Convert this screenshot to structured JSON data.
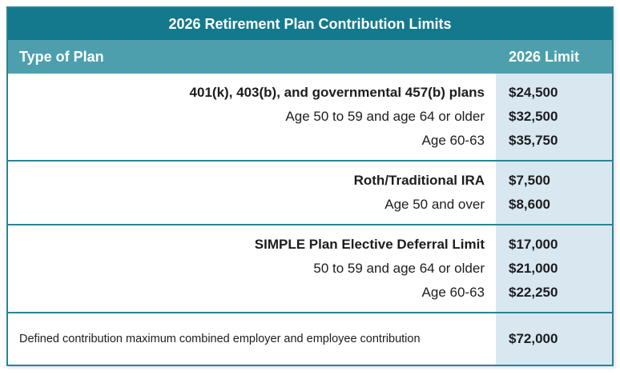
{
  "title": "2026 Retirement Plan Contribution Limits",
  "header": {
    "plan_col": "Type of Plan",
    "limit_col": "2026 Limit"
  },
  "groups": [
    {
      "rows": [
        {
          "label": "401(k), 403(b), and governmental 457(b) plans",
          "value": "$24,500"
        },
        {
          "label": "Age 50 to 59 and age 64 or older",
          "value": "$32,500"
        },
        {
          "label": "Age 60-63",
          "value": "$35,750"
        }
      ]
    },
    {
      "rows": [
        {
          "label": "Roth/Traditional IRA",
          "value": "$7,500"
        },
        {
          "label": "Age 50 and over",
          "value": "$8,600"
        }
      ]
    },
    {
      "rows": [
        {
          "label": "SIMPLE Plan Elective Deferral Limit",
          "value": "$17,000"
        },
        {
          "label": "50 to 59 and age 64 or older",
          "value": "$21,000"
        },
        {
          "label": "Age 60-63",
          "value": "$22,250"
        }
      ]
    },
    {
      "rows": [
        {
          "label": "Defined contribution maximum combined employer and employee contribution",
          "value": "$72,000"
        }
      ]
    }
  ],
  "colors": {
    "title_bg": "#14798c",
    "header_bg": "#4d9fae",
    "border": "#2a8496",
    "limit_col_bg": "#d9e8f0",
    "text": "#1d1d1f"
  },
  "chart_data": {
    "type": "table",
    "title": "2026 Retirement Plan Contribution Limits",
    "columns": [
      "Type of Plan",
      "2026 Limit"
    ],
    "rows": [
      [
        "401(k), 403(b), and governmental 457(b) plans",
        "$24,500"
      ],
      [
        "Age 50 to 59 and age 64 or older",
        "$32,500"
      ],
      [
        "Age 60-63",
        "$35,750"
      ],
      [
        "Roth/Traditional IRA",
        "$7,500"
      ],
      [
        "Age 50 and over",
        "$8,600"
      ],
      [
        "SIMPLE Plan Elective Deferral Limit",
        "$17,000"
      ],
      [
        "50 to 59 and age 64 or older",
        "$21,000"
      ],
      [
        "Age 60-63",
        "$22,250"
      ],
      [
        "Defined contribution maximum combined employer and employee contribution",
        "$72,000"
      ]
    ]
  }
}
